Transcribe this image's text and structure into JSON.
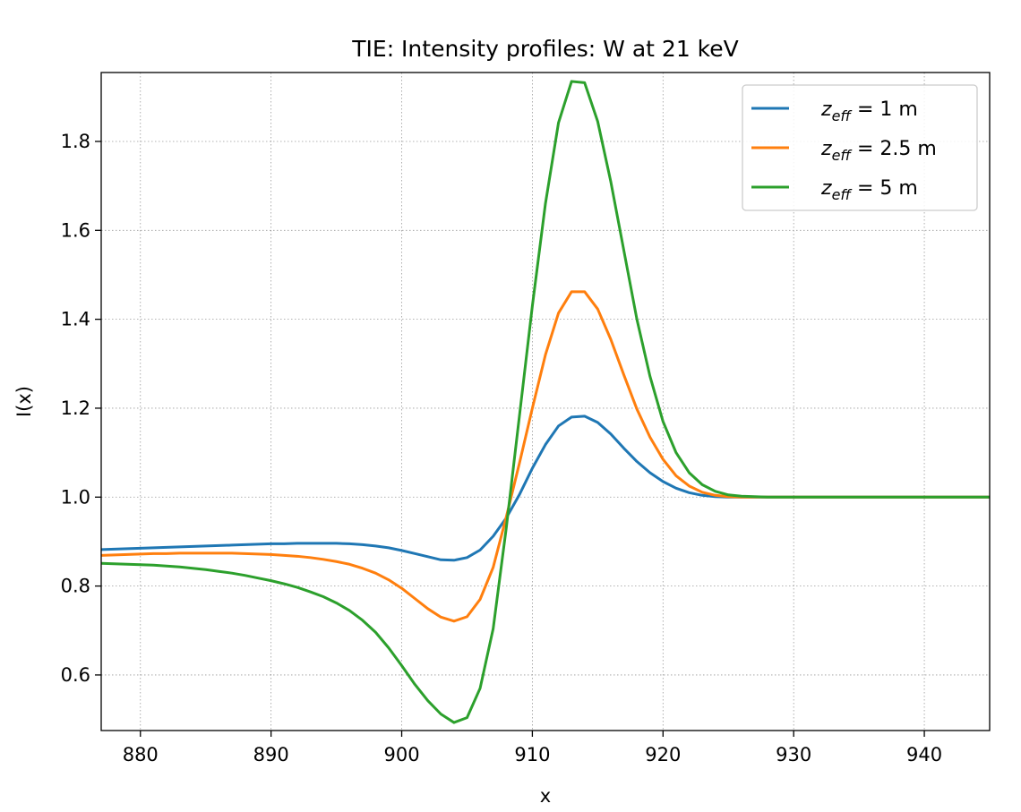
{
  "chart_data": {
    "type": "line",
    "title": "TIE: Intensity profiles: W at 21 keV",
    "xlabel": "x",
    "ylabel": "I(x)",
    "xlim": [
      877,
      945
    ],
    "ylim": [
      0.475,
      1.955
    ],
    "xticks": [
      880,
      890,
      900,
      910,
      920,
      930,
      940
    ],
    "yticks": [
      0.6,
      0.8,
      1.0,
      1.2,
      1.4,
      1.6,
      1.8
    ],
    "ytick_labels": [
      "0.6",
      "0.8",
      "1.0",
      "1.2",
      "1.4",
      "1.6",
      "1.8"
    ],
    "grid": true,
    "legend_position": "top-right",
    "x": [
      877,
      878,
      879,
      880,
      881,
      882,
      883,
      884,
      885,
      886,
      887,
      888,
      889,
      890,
      891,
      892,
      893,
      894,
      895,
      896,
      897,
      898,
      899,
      900,
      901,
      902,
      903,
      904,
      905,
      906,
      907,
      908,
      909,
      910,
      911,
      912,
      913,
      914,
      915,
      916,
      917,
      918,
      919,
      920,
      921,
      922,
      923,
      924,
      925,
      926,
      927,
      928,
      929,
      930,
      931,
      932,
      933,
      934,
      935,
      936,
      937,
      938,
      939,
      940,
      941,
      942,
      943,
      944,
      945
    ],
    "series": [
      {
        "name_prefix": "z",
        "name_sub": "eff",
        "name_suffix": " = 1 m",
        "color": "#1f77b4",
        "values": [
          0.882,
          0.883,
          0.884,
          0.885,
          0.886,
          0.887,
          0.888,
          0.889,
          0.89,
          0.891,
          0.892,
          0.893,
          0.894,
          0.895,
          0.895,
          0.896,
          0.896,
          0.896,
          0.896,
          0.895,
          0.893,
          0.89,
          0.886,
          0.88,
          0.873,
          0.866,
          0.859,
          0.858,
          0.864,
          0.881,
          0.912,
          0.953,
          1.005,
          1.065,
          1.118,
          1.16,
          1.18,
          1.182,
          1.168,
          1.142,
          1.11,
          1.08,
          1.055,
          1.035,
          1.02,
          1.01,
          1.004,
          1.001,
          1.0,
          1.0,
          1.0,
          1.0,
          1.0,
          1.0,
          1.0,
          1.0,
          1.0,
          1.0,
          1.0,
          1.0,
          1.0,
          1.0,
          1.0,
          1.0,
          1.0,
          1.0,
          1.0,
          1.0,
          1.0
        ]
      },
      {
        "name_prefix": "z",
        "name_sub": "eff",
        "name_suffix": " = 2.5 m",
        "color": "#ff7f0e",
        "values": [
          0.869,
          0.87,
          0.871,
          0.872,
          0.873,
          0.873,
          0.874,
          0.874,
          0.874,
          0.874,
          0.874,
          0.873,
          0.872,
          0.871,
          0.869,
          0.867,
          0.864,
          0.86,
          0.855,
          0.849,
          0.84,
          0.829,
          0.814,
          0.795,
          0.772,
          0.749,
          0.73,
          0.721,
          0.731,
          0.77,
          0.842,
          0.955,
          1.075,
          1.2,
          1.32,
          1.414,
          1.462,
          1.462,
          1.423,
          1.355,
          1.275,
          1.198,
          1.135,
          1.085,
          1.048,
          1.025,
          1.011,
          1.004,
          1.001,
          1.0,
          1.0,
          1.0,
          1.0,
          1.0,
          1.0,
          1.0,
          1.0,
          1.0,
          1.0,
          1.0,
          1.0,
          1.0,
          1.0,
          1.0,
          1.0,
          1.0,
          1.0,
          1.0,
          1.0
        ]
      },
      {
        "name_prefix": "z",
        "name_sub": "eff",
        "name_suffix": " = 5 m",
        "color": "#2ca02c",
        "values": [
          0.851,
          0.85,
          0.849,
          0.848,
          0.847,
          0.845,
          0.843,
          0.84,
          0.837,
          0.833,
          0.829,
          0.824,
          0.818,
          0.812,
          0.805,
          0.797,
          0.787,
          0.776,
          0.762,
          0.745,
          0.723,
          0.696,
          0.661,
          0.621,
          0.579,
          0.542,
          0.512,
          0.493,
          0.504,
          0.57,
          0.704,
          0.93,
          1.18,
          1.43,
          1.66,
          1.842,
          1.935,
          1.932,
          1.845,
          1.71,
          1.555,
          1.4,
          1.272,
          1.17,
          1.1,
          1.055,
          1.028,
          1.013,
          1.005,
          1.002,
          1.001,
          1.0,
          1.0,
          1.0,
          1.0,
          1.0,
          1.0,
          1.0,
          1.0,
          1.0,
          1.0,
          1.0,
          1.0,
          1.0,
          1.0,
          1.0,
          1.0,
          1.0,
          1.0
        ]
      }
    ]
  }
}
